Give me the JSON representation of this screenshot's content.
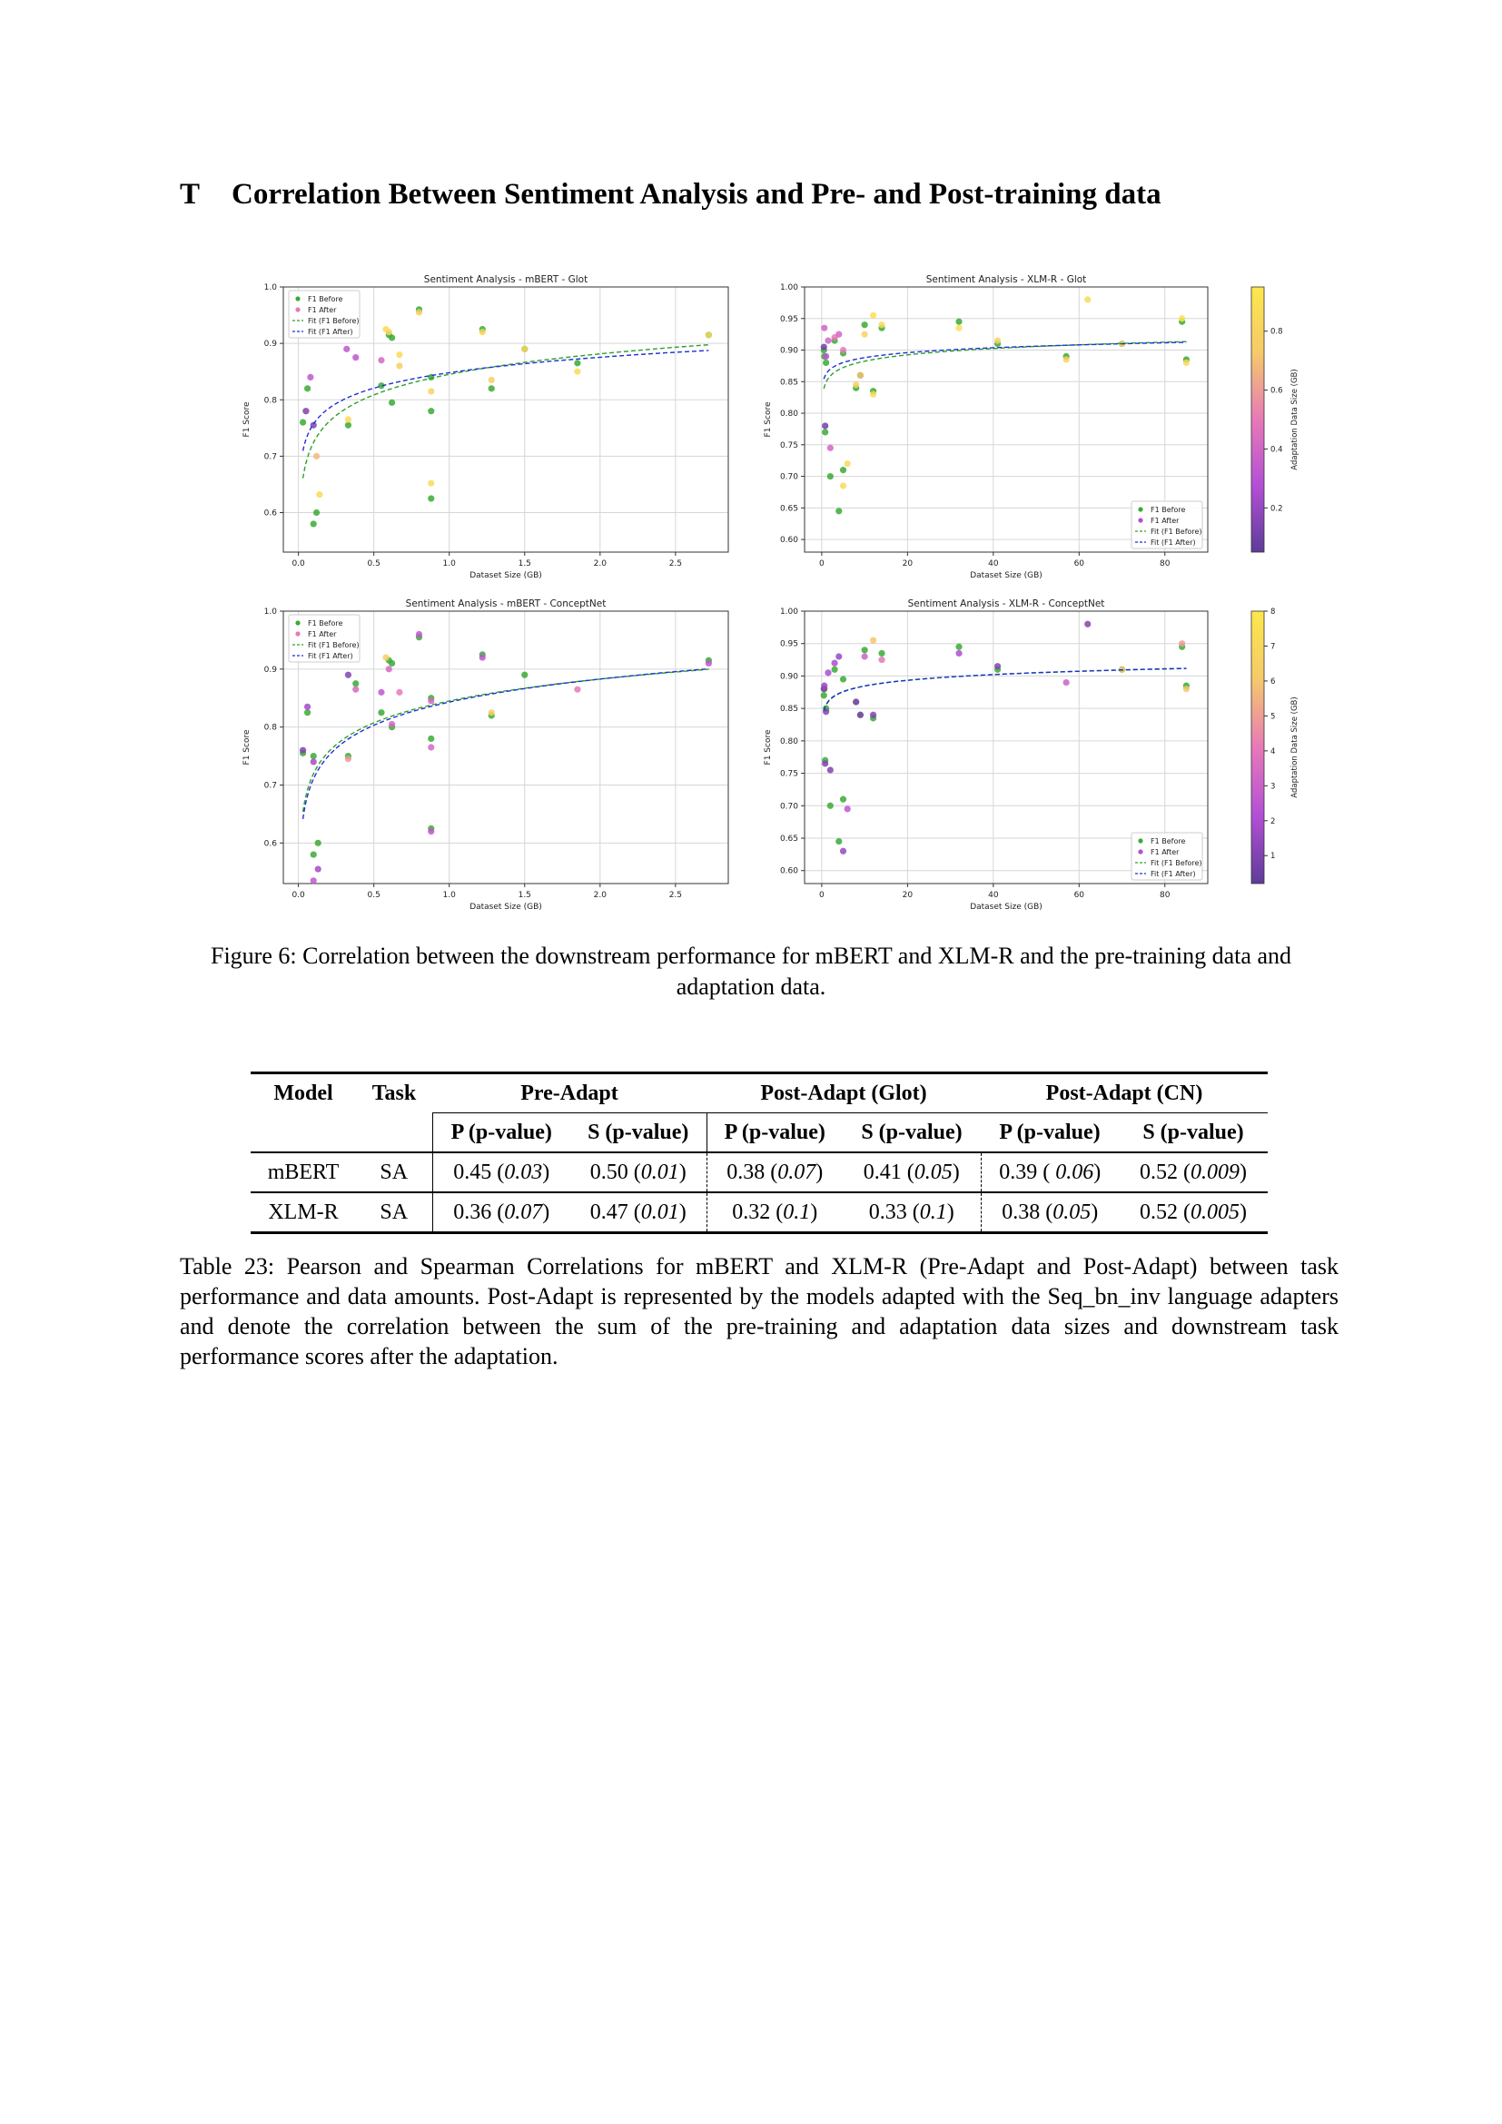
{
  "section": {
    "number": "T",
    "title": "Correlation Between Sentiment Analysis and Pre- and Post-training data"
  },
  "figure": {
    "caption": "Figure 6: Correlation between the downstream performance for mBERT and XLM-R and the pre-training data and adaptation data.",
    "colors": {
      "before": "#3aaa35",
      "fit_before": "#2ca02c",
      "fit_after": "#1f2fd6",
      "cmap": [
        "#5e3c99",
        "#b44fd6",
        "#e879b8",
        "#f5c96a",
        "#fde74c"
      ]
    }
  },
  "chart_data": [
    {
      "type": "scatter",
      "title": "Sentiment Analysis - mBERT - Glot",
      "xlabel": "Dataset Size (GB)",
      "ylabel": "F1 Score",
      "xlim": [
        -0.1,
        2.85
      ],
      "ylim": [
        0.53,
        1.0
      ],
      "xticks": [
        0.0,
        0.5,
        1.0,
        1.5,
        2.0,
        2.5
      ],
      "xtick_labels": [
        "0.0",
        "0.5",
        "1.0",
        "1.5",
        "2.0",
        "2.5"
      ],
      "yticks": [
        0.6,
        0.7,
        0.8,
        0.9,
        1.0
      ],
      "ytick_labels": [
        "0.6",
        "0.7",
        "0.8",
        "0.9",
        "1.0"
      ],
      "legend": [
        "F1 Before",
        "F1 After",
        "Fit (F1 Before)",
        "Fit (F1 After)"
      ],
      "legend_loc": "upper-left",
      "colorbar": null,
      "grid": true,
      "fit_before": {
        "a": 0.845,
        "b": 0.0525
      },
      "fit_after": {
        "a": 0.848,
        "b": 0.0395
      },
      "points_before": [
        [
          0.03,
          0.76
        ],
        [
          0.05,
          0.78
        ],
        [
          0.06,
          0.82
        ],
        [
          0.1,
          0.58
        ],
        [
          0.12,
          0.6
        ],
        [
          0.33,
          0.755
        ],
        [
          0.55,
          0.825
        ],
        [
          0.6,
          0.915
        ],
        [
          0.62,
          0.91
        ],
        [
          0.62,
          0.795
        ],
        [
          0.8,
          0.96
        ],
        [
          0.88,
          0.84
        ],
        [
          0.88,
          0.78
        ],
        [
          0.88,
          0.625
        ],
        [
          1.22,
          0.925
        ],
        [
          1.28,
          0.82
        ],
        [
          1.5,
          0.89
        ],
        [
          1.85,
          0.865
        ],
        [
          2.72,
          0.915
        ]
      ],
      "points_after": [
        [
          0.05,
          0.78
        ],
        [
          0.08,
          0.84
        ],
        [
          0.1,
          0.755
        ],
        [
          0.12,
          0.7
        ],
        [
          0.14,
          0.632
        ],
        [
          0.32,
          0.89
        ],
        [
          0.33,
          0.765
        ],
        [
          0.38,
          0.875
        ],
        [
          0.55,
          0.87
        ],
        [
          0.58,
          0.925
        ],
        [
          0.6,
          0.92
        ],
        [
          0.67,
          0.88
        ],
        [
          0.67,
          0.86
        ],
        [
          0.8,
          0.955
        ],
        [
          0.88,
          0.815
        ],
        [
          0.88,
          0.652
        ],
        [
          1.22,
          0.92
        ],
        [
          1.28,
          0.835
        ],
        [
          1.5,
          0.89
        ],
        [
          1.85,
          0.85
        ],
        [
          2.72,
          0.915
        ]
      ],
      "after_color_values": [
        0.2,
        0.3,
        0.1,
        0.7,
        0.9,
        0.3,
        0.9,
        0.3,
        0.4,
        0.9,
        0.85,
        0.9,
        0.8,
        0.8,
        0.85,
        0.9,
        0.85,
        0.8,
        0.85,
        0.9,
        0.85
      ]
    },
    {
      "type": "scatter",
      "title": "Sentiment Analysis - XLM-R - Glot",
      "xlabel": "Dataset Size (GB)",
      "ylabel": "F1 Score",
      "xlim": [
        -4,
        90
      ],
      "ylim": [
        0.58,
        1.0
      ],
      "xticks": [
        0,
        20,
        40,
        60,
        80
      ],
      "xtick_labels": [
        "0",
        "20",
        "40",
        "60",
        "80"
      ],
      "yticks": [
        0.6,
        0.65,
        0.7,
        0.75,
        0.8,
        0.85,
        0.9,
        0.95,
        1.0
      ],
      "ytick_labels": [
        "0.60",
        "0.65",
        "0.70",
        "0.75",
        "0.80",
        "0.85",
        "0.90",
        "0.95",
        "1.00"
      ],
      "legend": [
        "F1 Before",
        "F1 After",
        "Fit (F1 Before)",
        "Fit (F1 After)"
      ],
      "legend_loc": "lower-right",
      "colorbar": {
        "label": "Adaptation Data Size (GB)",
        "min": 0.05,
        "max": 0.95,
        "ticks": [
          0.2,
          0.4,
          0.6,
          0.8
        ],
        "tick_labels": [
          "0.2",
          "0.4",
          "0.6",
          "0.8"
        ]
      },
      "grid": true,
      "fit_before": {
        "a": 0.849,
        "b": 0.0145
      },
      "fit_after": {
        "a": 0.862,
        "b": 0.0113
      },
      "points_before": [
        [
          0.5,
          0.9
        ],
        [
          0.6,
          0.89
        ],
        [
          0.8,
          0.77
        ],
        [
          1,
          0.88
        ],
        [
          2,
          0.7
        ],
        [
          3,
          0.915
        ],
        [
          4,
          0.645
        ],
        [
          5,
          0.71
        ],
        [
          5,
          0.895
        ],
        [
          8,
          0.84
        ],
        [
          9,
          0.86
        ],
        [
          10,
          0.94
        ],
        [
          12,
          0.835
        ],
        [
          14,
          0.935
        ],
        [
          32,
          0.945
        ],
        [
          41,
          0.91
        ],
        [
          57,
          0.89
        ],
        [
          70,
          0.91
        ],
        [
          84,
          0.945
        ],
        [
          85,
          0.885
        ]
      ],
      "points_after": [
        [
          0.5,
          0.905
        ],
        [
          0.6,
          0.935
        ],
        [
          0.8,
          0.78
        ],
        [
          1,
          0.89
        ],
        [
          1.5,
          0.915
        ],
        [
          2,
          0.745
        ],
        [
          3,
          0.92
        ],
        [
          4,
          0.925
        ],
        [
          5,
          0.685
        ],
        [
          5,
          0.9
        ],
        [
          6,
          0.72
        ],
        [
          8,
          0.845
        ],
        [
          9,
          0.86
        ],
        [
          10,
          0.925
        ],
        [
          12,
          0.955
        ],
        [
          12,
          0.83
        ],
        [
          14,
          0.94
        ],
        [
          32,
          0.935
        ],
        [
          41,
          0.915
        ],
        [
          57,
          0.885
        ],
        [
          62,
          0.98
        ],
        [
          70,
          0.91
        ],
        [
          84,
          0.95
        ],
        [
          85,
          0.88
        ]
      ],
      "after_color_values": [
        0.1,
        0.4,
        0.1,
        0.3,
        0.4,
        0.4,
        0.5,
        0.4,
        0.85,
        0.5,
        0.85,
        0.8,
        0.7,
        0.8,
        0.9,
        0.85,
        0.85,
        0.9,
        0.8,
        0.8,
        0.85,
        0.8,
        0.9,
        0.85
      ]
    },
    {
      "type": "scatter",
      "title": "Sentiment Analysis - mBERT - ConceptNet",
      "xlabel": "Dataset Size (GB)",
      "ylabel": "F1 Score",
      "xlim": [
        -0.1,
        2.85
      ],
      "ylim": [
        0.53,
        1.0
      ],
      "xticks": [
        0.0,
        0.5,
        1.0,
        1.5,
        2.0,
        2.5
      ],
      "xtick_labels": [
        "0.0",
        "0.5",
        "1.0",
        "1.5",
        "2.0",
        "2.5"
      ],
      "yticks": [
        0.6,
        0.7,
        0.8,
        0.9,
        1.0
      ],
      "ytick_labels": [
        "0.6",
        "0.7",
        "0.8",
        "0.9",
        "1.0"
      ],
      "legend": [
        "F1 Before",
        "F1 After",
        "Fit (F1 Before)",
        "Fit (F1 After)"
      ],
      "legend_loc": "upper-left",
      "colorbar": null,
      "grid": true,
      "fit_before": {
        "a": 0.845,
        "b": 0.0545
      },
      "fit_after": {
        "a": 0.843,
        "b": 0.0575
      },
      "points_before": [
        [
          0.03,
          0.755
        ],
        [
          0.06,
          0.825
        ],
        [
          0.1,
          0.75
        ],
        [
          0.1,
          0.58
        ],
        [
          0.13,
          0.6
        ],
        [
          0.33,
          0.75
        ],
        [
          0.38,
          0.875
        ],
        [
          0.55,
          0.825
        ],
        [
          0.6,
          0.915
        ],
        [
          0.62,
          0.91
        ],
        [
          0.62,
          0.8
        ],
        [
          0.8,
          0.955
        ],
        [
          0.88,
          0.85
        ],
        [
          0.88,
          0.78
        ],
        [
          0.88,
          0.625
        ],
        [
          1.22,
          0.925
        ],
        [
          1.28,
          0.82
        ],
        [
          1.5,
          0.89
        ],
        [
          2.72,
          0.915
        ]
      ],
      "points_after": [
        [
          0.03,
          0.76
        ],
        [
          0.06,
          0.835
        ],
        [
          0.1,
          0.74
        ],
        [
          0.1,
          0.535
        ],
        [
          0.13,
          0.555
        ],
        [
          0.33,
          0.89
        ],
        [
          0.33,
          0.745
        ],
        [
          0.38,
          0.865
        ],
        [
          0.55,
          0.86
        ],
        [
          0.58,
          0.92
        ],
        [
          0.6,
          0.9
        ],
        [
          0.62,
          0.805
        ],
        [
          0.67,
          0.86
        ],
        [
          0.8,
          0.96
        ],
        [
          0.88,
          0.845
        ],
        [
          0.88,
          0.765
        ],
        [
          0.88,
          0.62
        ],
        [
          1.22,
          0.92
        ],
        [
          1.28,
          0.825
        ],
        [
          1.85,
          0.865
        ],
        [
          2.72,
          0.91
        ]
      ],
      "after_color_values": [
        0.1,
        0.2,
        0.2,
        0.3,
        0.2,
        0.1,
        0.6,
        0.4,
        0.3,
        0.8,
        0.4,
        0.4,
        0.5,
        0.3,
        0.4,
        0.4,
        0.3,
        0.3,
        0.8,
        0.5,
        0.3
      ]
    },
    {
      "type": "scatter",
      "title": "Sentiment Analysis - XLM-R - ConceptNet",
      "xlabel": "Dataset Size (GB)",
      "ylabel": "F1 Score",
      "xlim": [
        -4,
        90
      ],
      "ylim": [
        0.58,
        1.0
      ],
      "xticks": [
        0,
        20,
        40,
        60,
        80
      ],
      "xtick_labels": [
        "0",
        "20",
        "40",
        "60",
        "80"
      ],
      "yticks": [
        0.6,
        0.65,
        0.7,
        0.75,
        0.8,
        0.85,
        0.9,
        0.95,
        1.0
      ],
      "ytick_labels": [
        "0.60",
        "0.65",
        "0.70",
        "0.75",
        "0.80",
        "0.85",
        "0.90",
        "0.95",
        "1.00"
      ],
      "legend": [
        "F1 Before",
        "F1 After",
        "Fit (F1 Before)",
        "Fit (F1 After)"
      ],
      "legend_loc": "lower-right",
      "colorbar": {
        "label": "Adaptation Data Size (GB)",
        "min": 0.2,
        "max": 8,
        "ticks": [
          1,
          2,
          3,
          4,
          5,
          6,
          7,
          8
        ],
        "tick_labels": [
          "1",
          "2",
          "3",
          "4",
          "5",
          "6",
          "7",
          "8"
        ]
      },
      "grid": true,
      "fit_before": {
        "a": 0.856,
        "b": 0.0125
      },
      "fit_after": {
        "a": 0.855,
        "b": 0.0128
      },
      "points_before": [
        [
          0.5,
          0.87
        ],
        [
          0.6,
          0.88
        ],
        [
          0.8,
          0.77
        ],
        [
          1,
          0.85
        ],
        [
          2,
          0.7
        ],
        [
          3,
          0.91
        ],
        [
          4,
          0.645
        ],
        [
          5,
          0.71
        ],
        [
          5,
          0.895
        ],
        [
          8,
          0.86
        ],
        [
          9,
          0.84
        ],
        [
          10,
          0.94
        ],
        [
          12,
          0.835
        ],
        [
          14,
          0.935
        ],
        [
          32,
          0.945
        ],
        [
          41,
          0.91
        ],
        [
          70,
          0.91
        ],
        [
          84,
          0.945
        ],
        [
          85,
          0.885
        ]
      ],
      "points_after": [
        [
          0.5,
          0.88
        ],
        [
          0.6,
          0.885
        ],
        [
          0.8,
          0.765
        ],
        [
          1,
          0.845
        ],
        [
          1.5,
          0.905
        ],
        [
          2,
          0.755
        ],
        [
          3,
          0.92
        ],
        [
          4,
          0.93
        ],
        [
          5,
          0.63
        ],
        [
          6,
          0.695
        ],
        [
          8,
          0.86
        ],
        [
          9,
          0.84
        ],
        [
          10,
          0.93
        ],
        [
          12,
          0.955
        ],
        [
          12,
          0.84
        ],
        [
          14,
          0.925
        ],
        [
          32,
          0.935
        ],
        [
          41,
          0.915
        ],
        [
          57,
          0.89
        ],
        [
          62,
          0.98
        ],
        [
          70,
          0.91
        ],
        [
          84,
          0.95
        ],
        [
          85,
          0.88
        ]
      ],
      "after_color_values": [
        1,
        1.5,
        1,
        1,
        2,
        1,
        2,
        1.5,
        1.5,
        2.5,
        1,
        1,
        3,
        6,
        1,
        4,
        2,
        1,
        3,
        1,
        6,
        5,
        6
      ]
    }
  ],
  "table": {
    "headers": {
      "model": "Model",
      "task": "Task",
      "pre_adapt": "Pre-Adapt",
      "post_glot": "Post-Adapt (Glot)",
      "post_cn": "Post-Adapt (CN)",
      "p": "P (p-value)",
      "s": "S (p-value)"
    },
    "rows": [
      {
        "model": "mBERT",
        "task": "SA",
        "cells": [
          [
            "0.45 (",
            "0.03",
            ")"
          ],
          [
            "0.50 (",
            "0.01",
            ")"
          ],
          [
            "0.38 (",
            "0.07",
            ")"
          ],
          [
            "0.41 (",
            "0.05",
            ")"
          ],
          [
            "0.39 ( ",
            "0.06",
            ")"
          ],
          [
            "0.52 (",
            "0.009",
            ")"
          ]
        ]
      },
      {
        "model": "XLM-R",
        "task": "SA",
        "cells": [
          [
            "0.36 (",
            "0.07",
            ")"
          ],
          [
            "0.47 (",
            "0.01",
            ")"
          ],
          [
            "0.32 (",
            "0.1",
            ")"
          ],
          [
            "0.33 (",
            "0.1",
            ")"
          ],
          [
            "0.38 (",
            "0.05",
            ")"
          ],
          [
            "0.52 (",
            "0.005",
            ")"
          ]
        ]
      }
    ],
    "caption": "Table 23: Pearson and Spearman Correlations for mBERT and XLM-R (Pre-Adapt and Post-Adapt) between task performance and data amounts. Post-Adapt is represented by the models adapted with the Seq_bn_inv language adapters and denote the correlation between the sum of the pre-training and adaptation data sizes and downstream task performance scores after the adaptation."
  }
}
